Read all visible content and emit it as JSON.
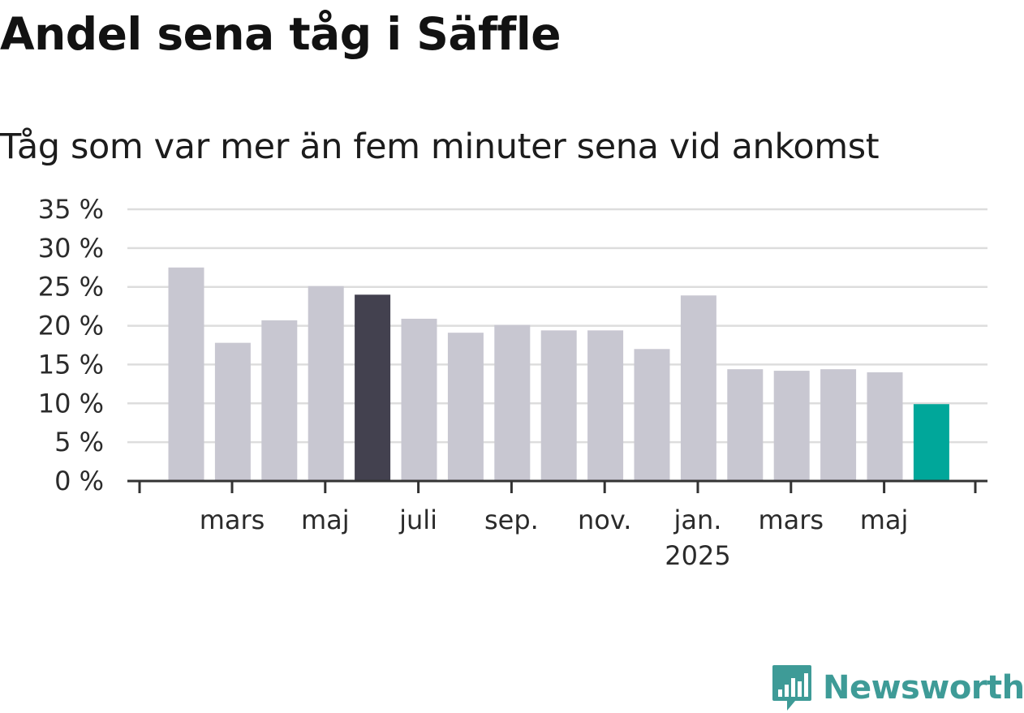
{
  "chart_data": {
    "type": "bar",
    "title": "Andel sena tåg i Säffle",
    "subtitle": "Tåg som var mer än fem minuter sena vid ankomst",
    "categories": [
      "2024-02",
      "2024-03",
      "2024-04",
      "2024-05",
      "2024-06",
      "2024-07",
      "2024-08",
      "2024-09",
      "2024-10",
      "2024-11",
      "2024-12",
      "2025-01",
      "2025-02",
      "2025-03",
      "2025-04",
      "2025-05",
      "2025-06"
    ],
    "values": [
      27.5,
      17.8,
      20.7,
      25.1,
      24.0,
      20.9,
      19.1,
      20.1,
      19.4,
      19.4,
      17.0,
      23.9,
      14.4,
      14.2,
      14.4,
      14.0,
      9.9
    ],
    "ylim": [
      0,
      35
    ],
    "yticks": [
      0,
      5,
      10,
      15,
      20,
      25,
      30,
      35
    ],
    "ytick_labels": [
      "0 %",
      "5 %",
      "10 %",
      "15 %",
      "20 %",
      "25 %",
      "30 %",
      "35 %"
    ],
    "xtick_labels": [
      {
        "label": "mars",
        "sub": ""
      },
      {
        "label": "maj",
        "sub": ""
      },
      {
        "label": "juli",
        "sub": ""
      },
      {
        "label": "sep.",
        "sub": ""
      },
      {
        "label": "nov.",
        "sub": ""
      },
      {
        "label": "jan.",
        "sub": "2025"
      },
      {
        "label": "mars",
        "sub": ""
      },
      {
        "label": "maj",
        "sub": ""
      }
    ],
    "grid": true,
    "colors": {
      "default": "#c8c7d1",
      "highlight": "#43414f",
      "latest": "#00a79a",
      "grid": "#dddddd",
      "axis": "#333333"
    },
    "highlight_index": 4,
    "latest_index": 16
  },
  "brand": {
    "name": "Newsworthy",
    "icon": "newsworthy-logo-icon",
    "color": "#3e9b97"
  }
}
